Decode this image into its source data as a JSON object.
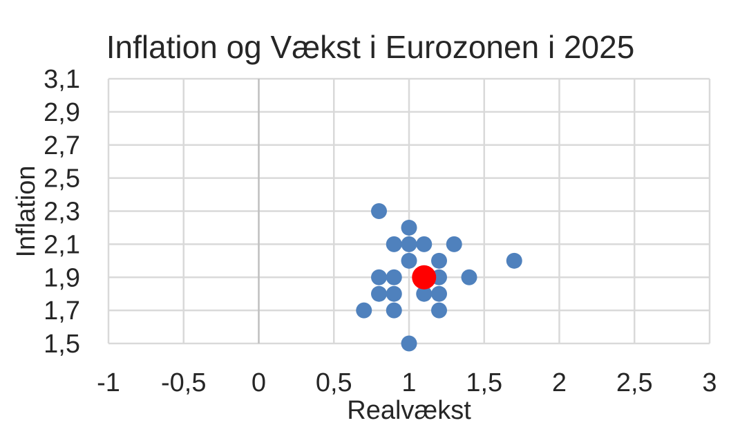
{
  "chart_data": {
    "type": "scatter",
    "title": "Inflation og Vækst i Eurozonen i 2025",
    "xlabel": "Realvækst",
    "ylabel": "Inflation",
    "xlim": [
      -1,
      3
    ],
    "ylim": [
      1.5,
      3.1
    ],
    "x_ticks": [
      -1,
      -0.5,
      0,
      0.5,
      1,
      1.5,
      2,
      2.5,
      3
    ],
    "x_tick_labels": [
      "-1",
      "-0,5",
      "0",
      "0,5",
      "1",
      "1,5",
      "2",
      "2,5",
      "3"
    ],
    "y_ticks": [
      1.5,
      1.7,
      1.9,
      2.1,
      2.3,
      2.5,
      2.7,
      2.9,
      3.1
    ],
    "y_tick_labels": [
      "1,5",
      "1,7",
      "1,9",
      "2,1",
      "2,3",
      "2,5",
      "2,7",
      "2,9",
      "3,1"
    ],
    "grid": true,
    "legend": "none",
    "series": [
      {
        "color": "#4f81bd",
        "points": [
          {
            "x": 0.8,
            "y": 2.3
          },
          {
            "x": 1.0,
            "y": 2.2
          },
          {
            "x": 0.9,
            "y": 2.1
          },
          {
            "x": 1.0,
            "y": 2.1
          },
          {
            "x": 1.1,
            "y": 2.1
          },
          {
            "x": 1.3,
            "y": 2.1
          },
          {
            "x": 1.0,
            "y": 2.0
          },
          {
            "x": 1.2,
            "y": 2.0
          },
          {
            "x": 1.7,
            "y": 2.0
          },
          {
            "x": 0.8,
            "y": 1.9
          },
          {
            "x": 0.9,
            "y": 1.9
          },
          {
            "x": 1.2,
            "y": 1.9
          },
          {
            "x": 1.4,
            "y": 1.9
          },
          {
            "x": 0.8,
            "y": 1.8
          },
          {
            "x": 0.9,
            "y": 1.8
          },
          {
            "x": 1.1,
            "y": 1.8
          },
          {
            "x": 1.2,
            "y": 1.8
          },
          {
            "x": 0.7,
            "y": 1.7
          },
          {
            "x": 0.9,
            "y": 1.7
          },
          {
            "x": 1.2,
            "y": 1.7
          },
          {
            "x": 1.0,
            "y": 1.5
          }
        ]
      },
      {
        "color": "#ff0000",
        "points": [
          {
            "x": 1.1,
            "y": 1.9
          }
        ]
      }
    ]
  }
}
